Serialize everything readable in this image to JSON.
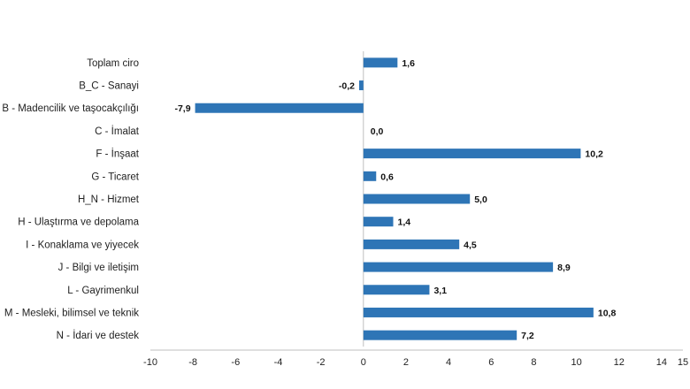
{
  "chart_data": {
    "type": "bar",
    "orientation": "horizontal",
    "categories": [
      "Toplam ciro",
      "B_C - Sanayi",
      "B - Madencilik ve taşocakçılığı",
      "C - İmalat",
      "F - İnşaat",
      "G - Ticaret",
      "H_N - Hizmet",
      "H - Ulaştırma ve depolama",
      "I - Konaklama ve yiyecek",
      "J - Bilgi ve iletişim",
      "L - Gayrimenkul",
      "M - Mesleki, bilimsel ve teknik",
      "N - İdari ve destek"
    ],
    "values": [
      1.6,
      -0.2,
      -7.9,
      0.0,
      10.2,
      0.6,
      5.0,
      1.4,
      4.5,
      8.9,
      3.1,
      10.8,
      7.2
    ],
    "data_labels": [
      "1,6",
      "-0,2",
      "-7,9",
      "0,0",
      "10,2",
      "0,6",
      "5,0",
      "1,4",
      "4,5",
      "8,9",
      "3,1",
      "10,8",
      "7,2"
    ],
    "x_ticks": [
      -10,
      -8,
      -6,
      -4,
      -2,
      0,
      2,
      4,
      6,
      8,
      10,
      12,
      14,
      15
    ],
    "x_tick_labels": [
      "-10",
      "-8",
      "-6",
      "-4",
      "-2",
      "0",
      "2",
      "4",
      "6",
      "8",
      "10",
      "12",
      "14",
      "15"
    ],
    "xlim": [
      -10,
      15
    ],
    "title": "",
    "xlabel": "",
    "ylabel": "",
    "grid": false,
    "legend": "none",
    "colors": {
      "bar": "#2e75b6",
      "axis": "#bfbfbf",
      "text": "#222222"
    }
  }
}
